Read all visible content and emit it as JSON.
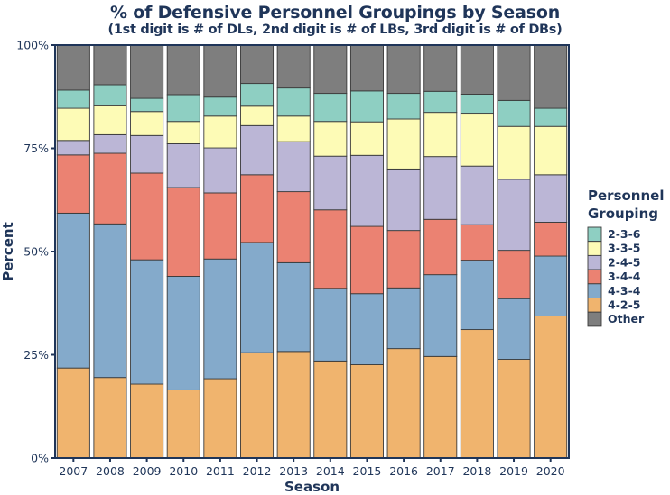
{
  "chart_data": {
    "type": "bar",
    "stacked": true,
    "normalized": true,
    "title": "% of Defensive Personnel Groupings by Season",
    "subtitle": "(1st digit is # of DLs, 2nd digit is # of LBs, 3rd digit is # of DBs)",
    "xlabel": "Season",
    "ylabel": "Percent",
    "ylim": [
      0,
      100
    ],
    "yticks": [
      0,
      25,
      50,
      75,
      100
    ],
    "ytick_labels": [
      "0%",
      "25%",
      "50%",
      "75%",
      "100%"
    ],
    "grid": false,
    "legend": {
      "title_line1": "Personnel",
      "title_line2": "Grouping",
      "placement": "right"
    },
    "categories": [
      "2007",
      "2008",
      "2009",
      "2010",
      "2011",
      "2012",
      "2013",
      "2014",
      "2015",
      "2016",
      "2017",
      "2018",
      "2019",
      "2020"
    ],
    "series": [
      {
        "name": "4-2-5",
        "color": "#f0b46e",
        "values": [
          21.8,
          19.5,
          17.9,
          16.5,
          19.2,
          25.5,
          25.8,
          23.5,
          22.6,
          26.5,
          24.6,
          31.1,
          23.9,
          34.4
        ]
      },
      {
        "name": "4-3-4",
        "color": "#84aacb",
        "values": [
          37.5,
          37.2,
          30.1,
          27.5,
          29.0,
          26.7,
          21.5,
          17.6,
          17.2,
          14.7,
          19.8,
          16.8,
          14.7,
          14.5
        ]
      },
      {
        "name": "3-4-4",
        "color": "#eb8272",
        "values": [
          14.1,
          17.1,
          21.0,
          21.5,
          16.0,
          16.4,
          17.2,
          19.0,
          16.3,
          13.9,
          13.4,
          8.6,
          11.7,
          8.2
        ]
      },
      {
        "name": "2-4-5",
        "color": "#bbb6d6",
        "values": [
          3.5,
          4.5,
          9.1,
          10.6,
          10.9,
          11.9,
          12.1,
          13.0,
          17.2,
          14.9,
          15.2,
          14.2,
          17.2,
          11.5
        ]
      },
      {
        "name": "3-3-5",
        "color": "#fdfbb6",
        "values": [
          7.8,
          7.0,
          5.8,
          5.4,
          7.7,
          4.7,
          6.2,
          8.4,
          8.1,
          12.1,
          10.7,
          12.8,
          12.8,
          11.7
        ]
      },
      {
        "name": "2-3-6",
        "color": "#8ecfc2",
        "values": [
          4.4,
          5.1,
          3.2,
          6.5,
          4.6,
          5.5,
          6.8,
          6.8,
          7.5,
          6.2,
          5.1,
          4.6,
          6.3,
          4.4
        ]
      },
      {
        "name": "Other",
        "color": "#7e7e7e",
        "values": [
          10.9,
          9.6,
          12.9,
          12.0,
          12.6,
          9.3,
          10.4,
          11.7,
          11.1,
          11.7,
          11.2,
          11.9,
          13.4,
          15.3
        ]
      }
    ],
    "legend_order": [
      "2-3-6",
      "3-3-5",
      "2-4-5",
      "3-4-4",
      "4-3-4",
      "4-2-5",
      "Other"
    ]
  },
  "colors": {
    "text": "#1f3559",
    "frame": "#1f3559",
    "bar_outline": "#3a3a3a"
  }
}
